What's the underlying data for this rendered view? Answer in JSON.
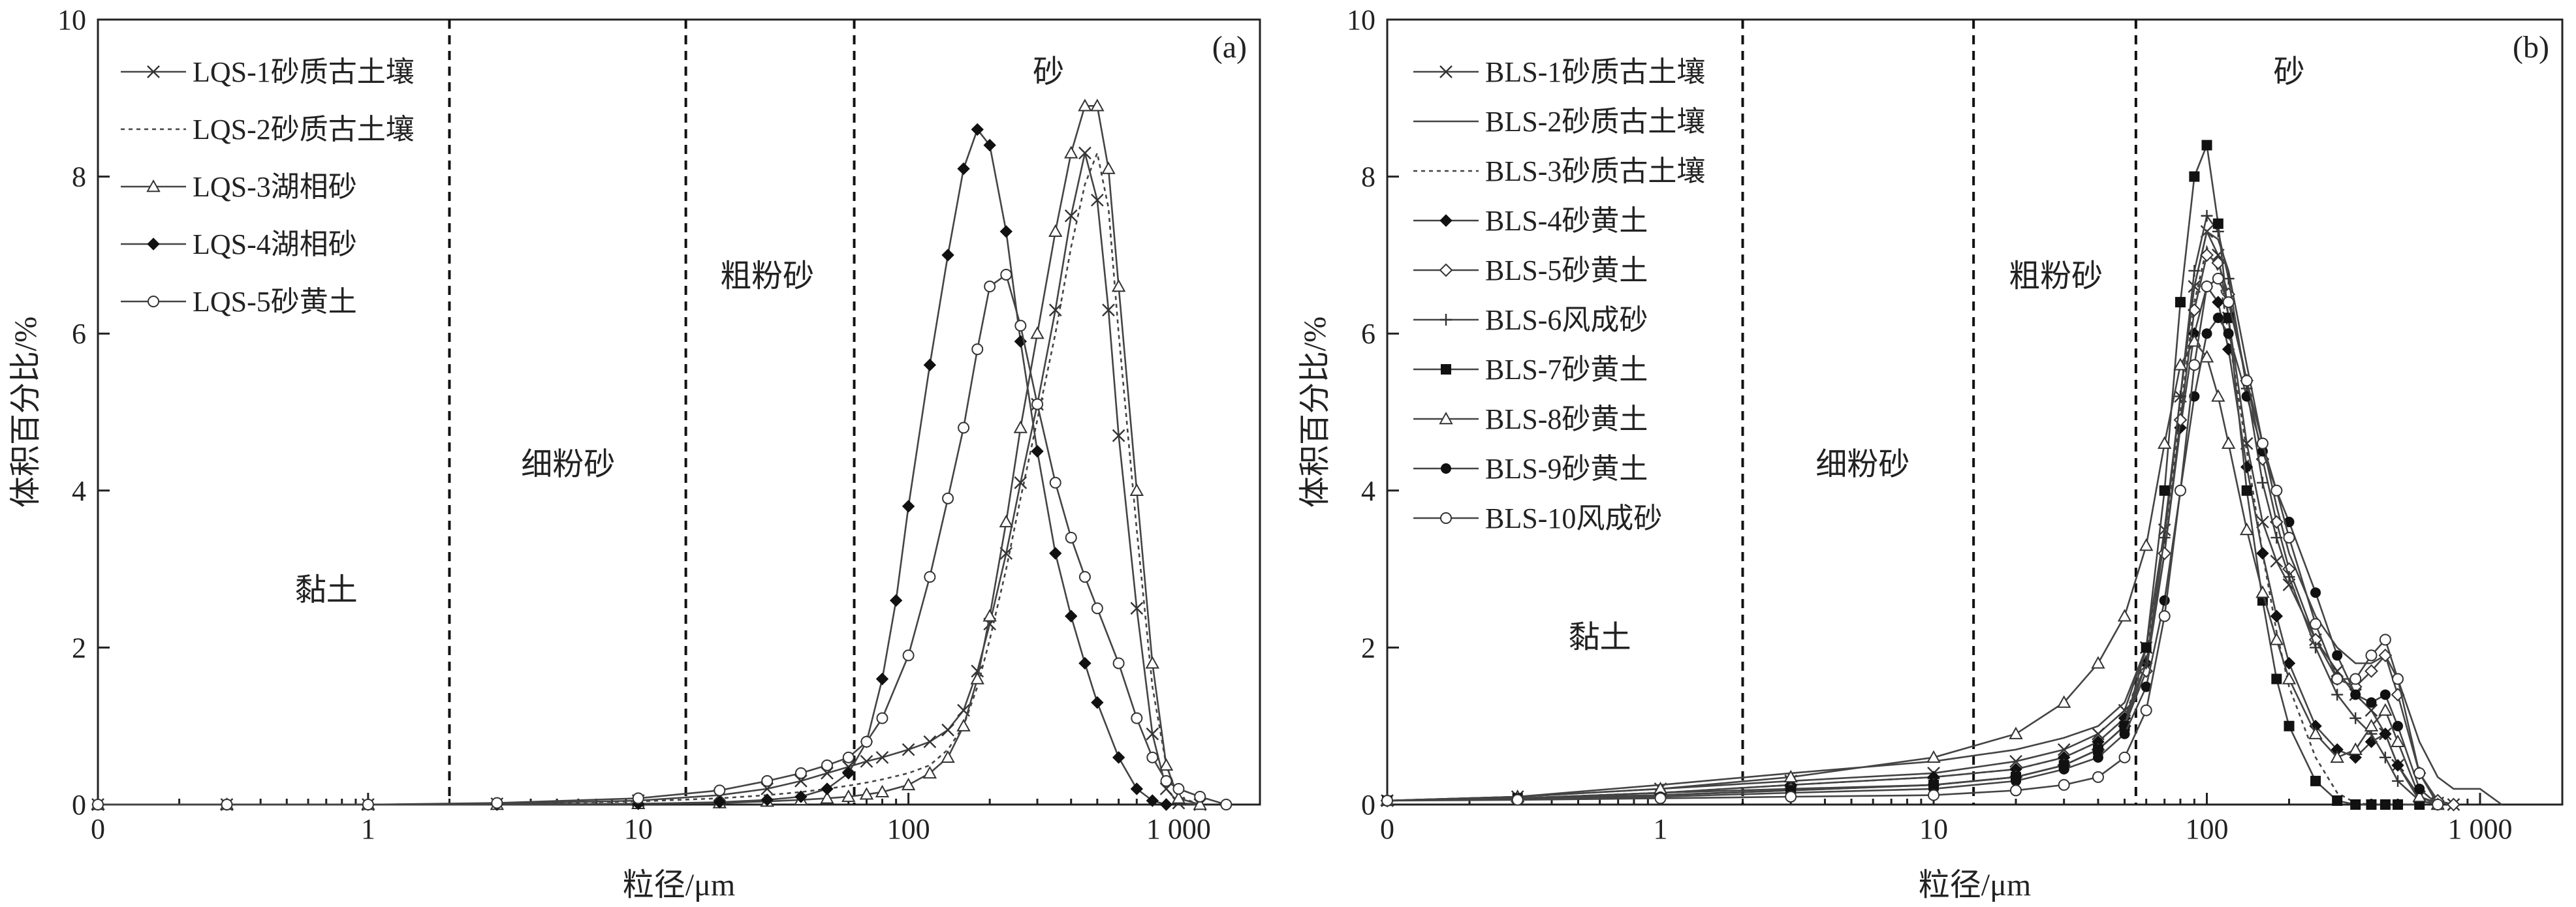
{
  "chart_data": [
    {
      "type": "line",
      "panel_label": "(a)",
      "xlabel": "粒径/μm",
      "ylabel": "体积百分比/%",
      "x_scale": "log",
      "xlim": [
        0.1,
        2000
      ],
      "ylim": [
        0,
        10
      ],
      "x_ticks": [
        0.1,
        1,
        10,
        100,
        1000
      ],
      "x_tick_labels": [
        "0",
        "1",
        "10",
        "100",
        "1 000"
      ],
      "y_ticks": [
        0,
        2,
        4,
        6,
        8,
        10
      ],
      "y_tick_labels": [
        "0",
        "2",
        "4",
        "6",
        "8",
        "10"
      ],
      "grid": false,
      "legend_position": "top-left",
      "boundaries": [
        2,
        15,
        63
      ],
      "zones": [
        {
          "label": "黏土",
          "x": 0.7,
          "y": 2.6
        },
        {
          "label": "细粉砂",
          "x": 5.5,
          "y": 4.2
        },
        {
          "label": "粗粉砂",
          "x": 30,
          "y": 6.6
        },
        {
          "label": "砂",
          "x": 330,
          "y": 9.2
        }
      ],
      "series": [
        {
          "name": "LQS-1砂质古土壤",
          "marker": "cross",
          "dash": "",
          "x": [
            0.1,
            0.3,
            1,
            3,
            10,
            20,
            30,
            40,
            50,
            60,
            70,
            80,
            100,
            120,
            140,
            160,
            180,
            200,
            230,
            260,
            300,
            350,
            400,
            450,
            500,
            550,
            600,
            700,
            800,
            900,
            1000,
            1200
          ],
          "y": [
            0,
            0,
            0,
            0.01,
            0.05,
            0.12,
            0.2,
            0.3,
            0.4,
            0.48,
            0.55,
            0.6,
            0.7,
            0.8,
            0.95,
            1.2,
            1.7,
            2.3,
            3.2,
            4.1,
            5.1,
            6.3,
            7.5,
            8.3,
            7.7,
            6.3,
            4.7,
            2.5,
            0.9,
            0.2,
            0.02,
            0
          ]
        },
        {
          "name": "LQS-2砂质古土壤",
          "marker": "none",
          "dash": "6 6",
          "x": [
            0.1,
            0.3,
            1,
            3,
            10,
            20,
            30,
            40,
            50,
            60,
            70,
            80,
            100,
            120,
            140,
            160,
            180,
            200,
            230,
            260,
            300,
            350,
            400,
            450,
            500,
            550,
            600,
            700,
            800,
            900,
            1000,
            1200
          ],
          "y": [
            0,
            0,
            0,
            0.01,
            0.04,
            0.08,
            0.12,
            0.16,
            0.2,
            0.24,
            0.28,
            0.32,
            0.4,
            0.5,
            0.7,
            1.0,
            1.5,
            2.1,
            3.0,
            3.9,
            4.9,
            6.0,
            7.1,
            7.9,
            8.3,
            7.6,
            6.0,
            3.5,
            1.5,
            0.5,
            0.1,
            0
          ]
        },
        {
          "name": "LQS-3湖相砂",
          "marker": "triangle",
          "dash": "",
          "x": [
            0.1,
            0.3,
            1,
            3,
            10,
            20,
            30,
            40,
            50,
            60,
            70,
            80,
            100,
            120,
            140,
            160,
            180,
            200,
            230,
            260,
            300,
            350,
            400,
            450,
            500,
            550,
            600,
            700,
            800,
            900,
            1000,
            1200
          ],
          "y": [
            0,
            0,
            0,
            0,
            0.01,
            0.02,
            0.04,
            0.06,
            0.08,
            0.1,
            0.13,
            0.16,
            0.25,
            0.4,
            0.6,
            1.0,
            1.6,
            2.4,
            3.6,
            4.8,
            6.0,
            7.3,
            8.3,
            8.9,
            8.9,
            8.1,
            6.6,
            4.0,
            1.8,
            0.5,
            0.08,
            0
          ]
        },
        {
          "name": "LQS-4湖相砂",
          "marker": "diamond",
          "dash": "",
          "x": [
            0.1,
            0.3,
            1,
            3,
            10,
            20,
            30,
            40,
            50,
            60,
            70,
            80,
            90,
            100,
            120,
            140,
            160,
            180,
            200,
            230,
            260,
            300,
            350,
            400,
            450,
            500,
            600,
            700,
            800,
            900
          ],
          "y": [
            0,
            0,
            0,
            0,
            0.01,
            0.03,
            0.06,
            0.1,
            0.2,
            0.4,
            0.8,
            1.6,
            2.6,
            3.8,
            5.6,
            7.0,
            8.1,
            8.6,
            8.4,
            7.3,
            5.9,
            4.5,
            3.2,
            2.4,
            1.8,
            1.3,
            0.6,
            0.2,
            0.05,
            0
          ]
        },
        {
          "name": "LQS-5砂黄土",
          "marker": "circle",
          "dash": "",
          "x": [
            0.1,
            0.3,
            1,
            3,
            10,
            20,
            30,
            40,
            50,
            60,
            70,
            80,
            100,
            120,
            140,
            160,
            180,
            200,
            230,
            260,
            300,
            350,
            400,
            450,
            500,
            600,
            700,
            800,
            900,
            1000,
            1200,
            1500
          ],
          "y": [
            0,
            0,
            0,
            0.02,
            0.08,
            0.18,
            0.3,
            0.4,
            0.5,
            0.6,
            0.8,
            1.1,
            1.9,
            2.9,
            3.9,
            4.8,
            5.8,
            6.6,
            6.75,
            6.1,
            5.1,
            4.1,
            3.4,
            2.9,
            2.5,
            1.8,
            1.1,
            0.6,
            0.3,
            0.2,
            0.1,
            0
          ]
        }
      ]
    },
    {
      "type": "line",
      "panel_label": "(b)",
      "xlabel": "粒径/μm",
      "ylabel": "体积百分比/%",
      "x_scale": "log",
      "xlim": [
        0.1,
        2000
      ],
      "ylim": [
        0,
        10
      ],
      "x_ticks": [
        0.1,
        1,
        10,
        100,
        1000
      ],
      "x_tick_labels": [
        "0",
        "1",
        "10",
        "100",
        "1 000"
      ],
      "y_ticks": [
        0,
        2,
        4,
        6,
        8,
        10
      ],
      "y_tick_labels": [
        "0",
        "2",
        "4",
        "6",
        "8",
        "10"
      ],
      "grid": false,
      "legend_position": "top-left",
      "boundaries": [
        2,
        14,
        55
      ],
      "zones": [
        {
          "label": "黏土",
          "x": 0.6,
          "y": 2.0
        },
        {
          "label": "细粉砂",
          "x": 5.5,
          "y": 4.2
        },
        {
          "label": "粗粉砂",
          "x": 28,
          "y": 6.6
        },
        {
          "label": "砂",
          "x": 200,
          "y": 9.2
        }
      ],
      "series": [
        {
          "name": "BLS-1砂质古土壤",
          "marker": "cross",
          "dash": "",
          "x": [
            0.1,
            0.3,
            1,
            3,
            10,
            20,
            30,
            40,
            50,
            60,
            70,
            80,
            90,
            100,
            110,
            120,
            140,
            160,
            180,
            200,
            250,
            300,
            350,
            400,
            450,
            500,
            600,
            700,
            800
          ],
          "y": [
            0.05,
            0.1,
            0.2,
            0.3,
            0.4,
            0.55,
            0.7,
            0.9,
            1.2,
            2.0,
            3.5,
            5.2,
            6.6,
            7.3,
            7.0,
            6.2,
            4.6,
            3.6,
            3.1,
            2.8,
            2.1,
            1.7,
            1.4,
            1.2,
            0.9,
            0.5,
            0.1,
            0.02,
            0
          ]
        },
        {
          "name": "BLS-2砂质古土壤",
          "marker": "none",
          "dash": "",
          "x": [
            0.1,
            0.3,
            1,
            3,
            10,
            20,
            30,
            40,
            50,
            60,
            70,
            80,
            90,
            100,
            110,
            120,
            140,
            160,
            180,
            200,
            250,
            300,
            350,
            400,
            450,
            500,
            600,
            700,
            800,
            900,
            1000,
            1200
          ],
          "y": [
            0.05,
            0.1,
            0.25,
            0.4,
            0.55,
            0.7,
            0.85,
            1.0,
            1.3,
            2.0,
            3.5,
            5.2,
            6.6,
            7.3,
            7.2,
            6.8,
            5.6,
            4.6,
            3.8,
            3.2,
            2.4,
            2.0,
            1.8,
            1.8,
            1.9,
            1.6,
            0.8,
            0.35,
            0.2,
            0.2,
            0.2,
            0
          ]
        },
        {
          "name": "BLS-3砂质古土壤",
          "marker": "none",
          "dash": "6 6",
          "x": [
            0.1,
            0.3,
            1,
            3,
            10,
            20,
            30,
            40,
            50,
            60,
            70,
            80,
            90,
            100,
            110,
            120,
            140,
            160,
            180,
            200,
            250,
            300,
            350,
            400
          ],
          "y": [
            0.05,
            0.08,
            0.15,
            0.25,
            0.35,
            0.45,
            0.6,
            0.8,
            1.1,
            1.9,
            3.4,
            5.0,
            6.4,
            7.1,
            6.8,
            6.0,
            4.5,
            3.2,
            2.2,
            1.5,
            0.6,
            0.15,
            0.02,
            0
          ]
        },
        {
          "name": "BLS-4砂黄土",
          "marker": "diamond",
          "dash": "",
          "x": [
            0.1,
            0.3,
            1,
            3,
            10,
            20,
            30,
            40,
            50,
            60,
            70,
            80,
            90,
            100,
            110,
            120,
            140,
            160,
            180,
            200,
            250,
            300,
            350,
            400,
            450,
            500,
            600,
            700
          ],
          "y": [
            0.05,
            0.08,
            0.15,
            0.25,
            0.35,
            0.45,
            0.6,
            0.8,
            1.1,
            1.8,
            3.2,
            4.8,
            6.0,
            6.6,
            6.4,
            5.8,
            4.3,
            3.2,
            2.4,
            1.8,
            1.0,
            0.7,
            0.6,
            0.8,
            0.9,
            0.5,
            0.05,
            0
          ]
        },
        {
          "name": "BLS-5砂黄土",
          "marker": "diamond-open",
          "dash": "",
          "x": [
            0.1,
            0.3,
            1,
            3,
            10,
            20,
            30,
            40,
            50,
            60,
            70,
            80,
            90,
            100,
            110,
            120,
            140,
            160,
            180,
            200,
            250,
            300,
            350,
            400,
            450,
            500,
            600,
            700,
            800
          ],
          "y": [
            0.05,
            0.08,
            0.15,
            0.2,
            0.25,
            0.35,
            0.5,
            0.7,
            1.0,
            1.7,
            3.2,
            4.9,
            6.3,
            7.0,
            6.9,
            6.5,
            5.4,
            4.4,
            3.6,
            3.0,
            2.1,
            1.6,
            1.5,
            1.7,
            1.9,
            1.4,
            0.4,
            0.05,
            0
          ]
        },
        {
          "name": "BLS-6风成砂",
          "marker": "plus",
          "dash": "",
          "x": [
            0.1,
            0.3,
            1,
            3,
            10,
            20,
            30,
            40,
            50,
            60,
            70,
            80,
            90,
            100,
            110,
            120,
            140,
            160,
            180,
            200,
            250,
            300,
            350,
            400,
            450,
            500,
            600,
            700
          ],
          "y": [
            0.05,
            0.08,
            0.12,
            0.18,
            0.25,
            0.35,
            0.5,
            0.7,
            1.0,
            1.8,
            3.4,
            5.2,
            6.8,
            7.5,
            7.3,
            6.7,
            5.3,
            4.1,
            3.4,
            2.9,
            2.0,
            1.4,
            1.1,
            0.9,
            0.6,
            0.3,
            0.05,
            0
          ]
        },
        {
          "name": "BLS-7砂黄土",
          "marker": "square",
          "dash": "",
          "x": [
            0.1,
            0.3,
            1,
            3,
            10,
            20,
            30,
            40,
            50,
            60,
            70,
            80,
            90,
            100,
            110,
            120,
            140,
            160,
            180,
            200,
            250,
            300,
            350,
            400,
            450,
            500,
            600
          ],
          "y": [
            0.05,
            0.08,
            0.12,
            0.18,
            0.25,
            0.35,
            0.5,
            0.7,
            1.0,
            2.0,
            4.0,
            6.4,
            8.0,
            8.4,
            7.4,
            6.2,
            4.0,
            2.6,
            1.6,
            1.0,
            0.3,
            0.05,
            0,
            0,
            0,
            0,
            0
          ]
        },
        {
          "name": "BLS-8砂黄土",
          "marker": "triangle",
          "dash": "",
          "x": [
            0.1,
            0.3,
            1,
            3,
            10,
            20,
            30,
            40,
            50,
            60,
            70,
            80,
            90,
            100,
            110,
            120,
            140,
            160,
            180,
            200,
            250,
            300,
            350,
            400,
            450,
            500,
            600,
            700
          ],
          "y": [
            0.05,
            0.1,
            0.2,
            0.35,
            0.6,
            0.9,
            1.3,
            1.8,
            2.4,
            3.3,
            4.6,
            5.6,
            5.9,
            5.7,
            5.2,
            4.6,
            3.5,
            2.7,
            2.1,
            1.6,
            0.9,
            0.6,
            0.7,
            1.0,
            1.2,
            0.8,
            0.1,
            0
          ]
        },
        {
          "name": "BLS-9砂黄土",
          "marker": "circle-filled",
          "dash": "",
          "x": [
            0.1,
            0.3,
            1,
            3,
            10,
            20,
            30,
            40,
            50,
            60,
            70,
            80,
            90,
            100,
            110,
            120,
            140,
            160,
            180,
            200,
            250,
            300,
            350,
            400,
            450,
            500,
            600,
            700
          ],
          "y": [
            0.05,
            0.08,
            0.1,
            0.15,
            0.2,
            0.3,
            0.45,
            0.6,
            0.9,
            1.5,
            2.6,
            4.0,
            5.2,
            6.0,
            6.2,
            6.0,
            5.2,
            4.5,
            4.0,
            3.6,
            2.7,
            1.9,
            1.4,
            1.3,
            1.4,
            1.0,
            0.2,
            0
          ]
        },
        {
          "name": "BLS-10风成砂",
          "marker": "circle",
          "dash": "",
          "x": [
            0.1,
            0.3,
            1,
            3,
            10,
            20,
            30,
            40,
            50,
            60,
            70,
            80,
            90,
            100,
            110,
            120,
            140,
            160,
            180,
            200,
            250,
            300,
            350,
            400,
            450,
            500,
            600,
            700
          ],
          "y": [
            0.05,
            0.06,
            0.08,
            0.1,
            0.12,
            0.18,
            0.25,
            0.35,
            0.6,
            1.2,
            2.4,
            4.0,
            5.6,
            6.6,
            6.7,
            6.4,
            5.4,
            4.6,
            4.0,
            3.4,
            2.3,
            1.6,
            1.6,
            1.9,
            2.1,
            1.6,
            0.4,
            0
          ]
        }
      ]
    }
  ]
}
